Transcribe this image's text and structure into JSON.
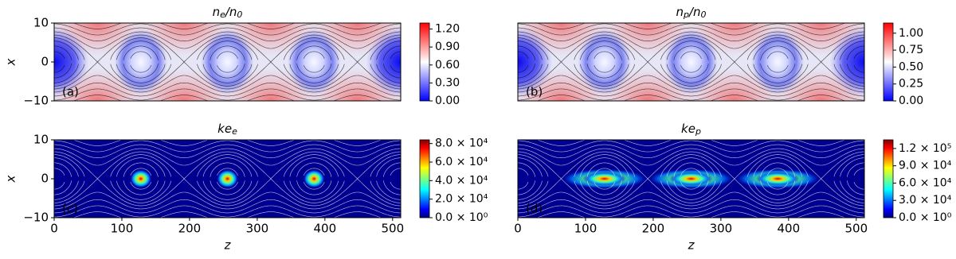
{
  "chart_data": [
    {
      "type": "heatmap",
      "title": "n_e/n_0",
      "annotation": "(a)",
      "ylabel": "x",
      "colormap": "bwr",
      "contour_color": "#000000",
      "xlim": [
        0,
        512
      ],
      "ylim": [
        -10,
        10
      ],
      "yticks": [
        {
          "value": -10,
          "label": "−10"
        },
        0,
        10
      ],
      "zlim": [
        0,
        1.3
      ],
      "zticks": [
        {
          "value": 0,
          "label": "0.00"
        },
        {
          "value": 0.3,
          "label": "0.30"
        },
        {
          "value": 0.6,
          "label": "0.60"
        },
        {
          "value": 0.9,
          "label": "0.90"
        },
        {
          "value": 1.2,
          "label": "1.20"
        }
      ]
    },
    {
      "type": "heatmap",
      "title": "n_p/n_0",
      "annotation": "(b)",
      "colormap": "bwr",
      "contour_color": "#000000",
      "xlim": [
        0,
        512
      ],
      "ylim": [
        -10,
        10
      ],
      "zlim": [
        0,
        1.15
      ],
      "zticks": [
        {
          "value": 0,
          "label": "0.00"
        },
        {
          "value": 0.25,
          "label": "0.25"
        },
        {
          "value": 0.5,
          "label": "0.50"
        },
        {
          "value": 0.75,
          "label": "0.75"
        },
        {
          "value": 1,
          "label": "1.00"
        }
      ]
    },
    {
      "type": "heatmap",
      "title": "ke_e",
      "annotation": "(c)",
      "xlabel": "z",
      "ylabel": "x",
      "colormap": "jet",
      "contour_color": "#ffffff",
      "xlim": [
        0,
        512
      ],
      "ylim": [
        -10,
        10
      ],
      "xticks": [
        0,
        100,
        200,
        300,
        400,
        500
      ],
      "yticks": [
        {
          "value": -10,
          "label": "−10"
        },
        0,
        10
      ],
      "zlim": [
        0,
        84000
      ],
      "zticks": [
        {
          "value": 0,
          "label": "0.0 × 10⁰"
        },
        {
          "value": 20000,
          "label": "2.0 × 10⁴"
        },
        {
          "value": 40000,
          "label": "4.0 × 10⁴"
        },
        {
          "value": 60000,
          "label": "6.0 × 10⁴"
        },
        {
          "value": 80000,
          "label": "8.0 × 10⁴"
        }
      ]
    },
    {
      "type": "heatmap",
      "title": "ke_p",
      "annotation": "(d)",
      "xlabel": "z",
      "colormap": "jet",
      "contour_color": "#ffffff",
      "xlim": [
        0,
        512
      ],
      "ylim": [
        -10,
        10
      ],
      "xticks": [
        0,
        100,
        200,
        300,
        400,
        500
      ],
      "zlim": [
        0,
        135000
      ],
      "zticks": [
        {
          "value": 0,
          "label": "0.0 × 10⁰"
        },
        {
          "value": 30000,
          "label": "3.0 × 10⁴"
        },
        {
          "value": 60000,
          "label": "6.0 × 10⁴"
        },
        {
          "value": 90000,
          "label": "9.0 × 10⁴"
        },
        {
          "value": 120000,
          "label": "1.2 × 10⁵"
        }
      ]
    }
  ]
}
